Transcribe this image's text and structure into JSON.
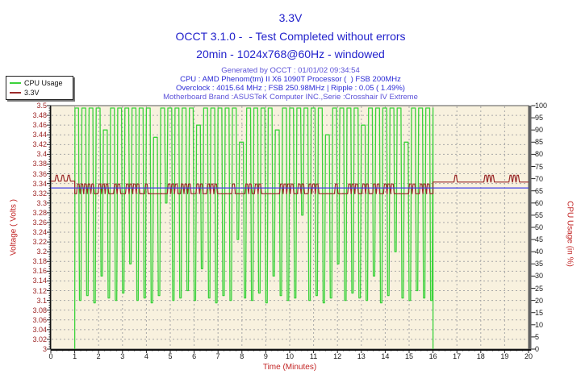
{
  "header": {
    "title": "3.3V",
    "subtitle": "OCCT 3.1.0 -  - Test Completed without errors",
    "subtitle2": "20min - 1024x768@60Hz - windowed",
    "info_lines": [
      {
        "text": "Generated by OCCT : 01/01/02 09:34:54",
        "color": "#5b51d8"
      },
      {
        "text": "CPU : AMD Phenom(tm) II X6 1090T Processor (  ) FSB 200MHz",
        "color": "#2b2bd6"
      },
      {
        "text": "Overclock : 4015.64 MHz ; FSB 250.98MHz | Ripple : 0.05 ( 1.49%)",
        "color": "#2b2bd6"
      },
      {
        "text": "Motherboard Brand :ASUSTeK Computer INC.,Serie :Crosshair IV Extreme",
        "color": "#5b51d8"
      }
    ]
  },
  "legend": {
    "items": [
      {
        "label": "CPU Usage",
        "color": "#3bd23b"
      },
      {
        "label": "3.3V",
        "color": "#9b2b2b"
      }
    ]
  },
  "chart_data": {
    "type": "line",
    "title": "3.3V",
    "xlabel": "Time (Minutes)",
    "ylabel_left": "Voltage ( Volts )",
    "ylabel_right": "CPU Usage (in %)",
    "x_axis": {
      "min": 0,
      "max": 20,
      "tick": 1,
      "minor_tick": 0.25
    },
    "y_left": {
      "min": 3.0,
      "max": 3.5,
      "tick": 0.02,
      "minor_tick": 0.005
    },
    "y_right": {
      "min": 0,
      "max": 100,
      "tick": 5
    },
    "grid": {
      "horizontal_step_volts": 0.02,
      "vertical_step_minutes": 1,
      "color": "#a8a8a8"
    },
    "plot_background": "#f8f1de",
    "series": [
      {
        "name": "CPU Usage",
        "axis": "right",
        "color": "#3bd23b",
        "waveform": {
          "kind": "burst",
          "start": 1,
          "end": 16,
          "period": 0.3,
          "tops": [
            99,
            99,
            99,
            99,
            90,
            99,
            99,
            99,
            99,
            99,
            99,
            87,
            99,
            99,
            99,
            99,
            99,
            92,
            99,
            99,
            99,
            99,
            99,
            85,
            99,
            99,
            99,
            99,
            90,
            99,
            99,
            99,
            99,
            99,
            99,
            88,
            99,
            99,
            99,
            99,
            92,
            99,
            99,
            99,
            99,
            99,
            85,
            99,
            99,
            99
          ],
          "bottoms": [
            20,
            22,
            19,
            30,
            21,
            20,
            23,
            35,
            20,
            21,
            19,
            22,
            60,
            20,
            21,
            24,
            20,
            33,
            21,
            19,
            22,
            20,
            45,
            21,
            20,
            23,
            19,
            30,
            22,
            20,
            21,
            55,
            20,
            22,
            19,
            21,
            35,
            20,
            23,
            21,
            20,
            30,
            19,
            22,
            40,
            21,
            20,
            24,
            21,
            20
          ]
        }
      },
      {
        "name": "3.3V",
        "axis": "left",
        "color": "#9b2b2b",
        "waveform": {
          "kind": "pulses",
          "idle_level": 3.345,
          "idle_bump": 3.357,
          "pre_bumps": [
            0.25,
            0.5,
            0.75
          ],
          "load_start": 1,
          "load_end": 16,
          "load_low": 3.319,
          "load_high": 3.339,
          "load_pulses": [
            1.15,
            1.3,
            1.45,
            1.6,
            1.75,
            2.05,
            2.2,
            2.35,
            2.7,
            2.85,
            3.2,
            3.35,
            3.5,
            3.65,
            4.0,
            4.95,
            5.1,
            5.25,
            5.5,
            5.65,
            5.8,
            6.15,
            6.3,
            6.6,
            6.75,
            6.9,
            7.65,
            8.2,
            8.35,
            8.6,
            8.75,
            9.65,
            9.8,
            9.95,
            10.1,
            10.4,
            10.55,
            10.85,
            11.0,
            11.15,
            11.95,
            12.5,
            12.65,
            12.8,
            13.1,
            13.25,
            13.55,
            13.7,
            14.0,
            14.15,
            14.3,
            15.05,
            15.2,
            15.5,
            15.65,
            15.8
          ],
          "post_level": 3.343,
          "post_bump": 3.357,
          "post_bumps": [
            16.95,
            18.2,
            18.35,
            18.5,
            19.25,
            19.4,
            19.55
          ]
        }
      },
      {
        "name": "3.3V average",
        "axis": "left",
        "color": "#4343e6",
        "waveform": {
          "kind": "flat",
          "start": 0,
          "end": 20,
          "level": 3.331
        }
      }
    ]
  }
}
